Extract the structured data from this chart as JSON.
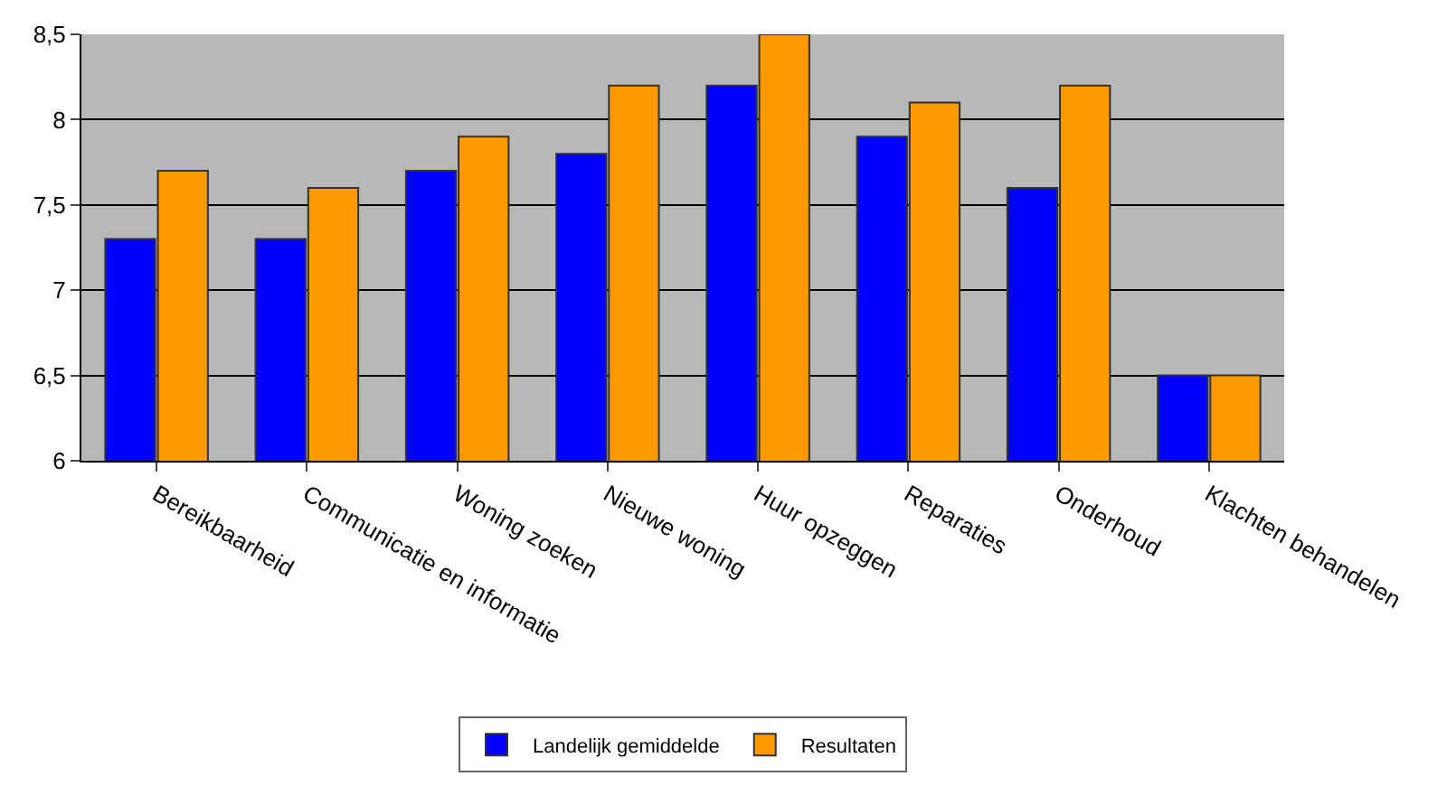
{
  "chart_data": {
    "type": "bar",
    "categories": [
      "Bereikbaarheid",
      "Communicatie en informatie",
      "Woning zoeken",
      "Nieuwe woning",
      "Huur opzeggen",
      "Reparaties",
      "Onderhoud",
      "Klachten behandelen"
    ],
    "series": [
      {
        "name": "Landelijk gemiddelde",
        "color": "#0000ff",
        "values": [
          7.3,
          7.3,
          7.7,
          7.8,
          8.2,
          7.9,
          7.6,
          6.5
        ]
      },
      {
        "name": "Resultaten",
        "color": "#ff9900",
        "values": [
          7.7,
          7.6,
          7.9,
          8.2,
          8.5,
          8.1,
          8.2,
          6.5
        ]
      }
    ],
    "ylim": [
      6,
      8.5
    ],
    "yticks": [
      6,
      {
        "value": 6.5,
        "label": "6,5"
      },
      7,
      {
        "value": 7.5,
        "label": "7,5"
      },
      8,
      {
        "value": 8.5,
        "label": "8,5"
      }
    ],
    "grid": "y",
    "legend": "bottom"
  }
}
